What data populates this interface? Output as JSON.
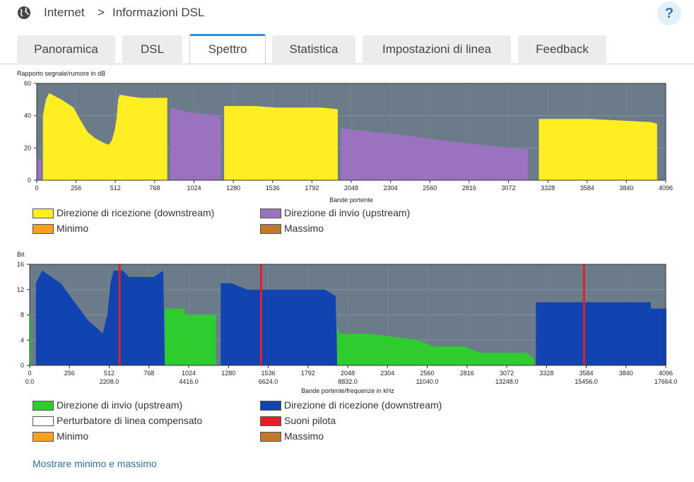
{
  "header": {
    "breadcrumb": [
      "Internet",
      "Informazioni DSL"
    ],
    "separator": ">",
    "help_label": "?"
  },
  "tabs": [
    {
      "label": "Panoramica",
      "active": false
    },
    {
      "label": "DSL",
      "active": false
    },
    {
      "label": "Spettro",
      "active": true
    },
    {
      "label": "Statistica",
      "active": false
    },
    {
      "label": "Impostazioni di linea",
      "active": false
    },
    {
      "label": "Feedback",
      "active": false
    }
  ],
  "colors": {
    "accent": "#2f8fd8",
    "plot_bg": "#6b7b89",
    "downstream_snr": "#ffee22",
    "upstream_snr": "#9b72c0",
    "upstream_bits": "#2ecc2e",
    "downstream_bits": "#1144b0",
    "pilot": "#e0202a",
    "minimum": "#f4a020",
    "maximum": "#c07a30",
    "compensated": "#ffffff"
  },
  "chart_data": [
    {
      "type": "area",
      "ylabel": "Rapporto segnale/rumore in dB",
      "xlabel": "Bande portente",
      "xlim": [
        0,
        4096
      ],
      "ylim": [
        0,
        60
      ],
      "xticks": [
        "0",
        "256",
        "512",
        "768",
        "1024",
        "1280",
        "1536",
        "1792",
        "2048",
        "2304",
        "2560",
        "2816",
        "3072",
        "3328",
        "3584",
        "3840",
        "4096"
      ],
      "yticks": [
        "0",
        "20",
        "40",
        "60"
      ],
      "grid": true,
      "series": [
        {
          "name": "Direzione di ricezione (downstream)",
          "color_key": "downstream_snr",
          "segments": [
            [
              [
                40,
                0
              ],
              [
                40,
                40
              ],
              [
                60,
                50
              ],
              [
                80,
                54
              ],
              [
                160,
                50
              ],
              [
                240,
                45
              ],
              [
                280,
                38
              ],
              [
                330,
                30
              ],
              [
                380,
                26
              ],
              [
                440,
                23
              ],
              [
                470,
                22
              ],
              [
                490,
                25
              ],
              [
                510,
                32
              ],
              [
                520,
                38
              ],
              [
                530,
                50
              ],
              [
                540,
                53
              ],
              [
                600,
                52
              ],
              [
                680,
                51
              ],
              [
                850,
                51
              ],
              [
                850,
                0
              ]
            ],
            [
              [
                1220,
                0
              ],
              [
                1220,
                46
              ],
              [
                1420,
                46
              ],
              [
                1560,
                45
              ],
              [
                1860,
                45
              ],
              [
                1960,
                44
              ],
              [
                1960,
                0
              ]
            ],
            [
              [
                3270,
                0
              ],
              [
                3270,
                38
              ],
              [
                3600,
                38
              ],
              [
                3800,
                37
              ],
              [
                4000,
                36
              ],
              [
                4040,
                35
              ],
              [
                4040,
                0
              ]
            ],
            [
              [
                2776,
                0
              ],
              [
                2776,
                18
              ],
              [
                2786,
                18
              ],
              [
                2786,
                0
              ]
            ]
          ]
        },
        {
          "name": "Direzione di invio (upstream)",
          "color_key": "upstream_snr",
          "segments": [
            [
              [
                0,
                0
              ],
              [
                0,
                13
              ],
              [
                30,
                13
              ],
              [
                30,
                0
              ]
            ],
            [
              [
                870,
                0
              ],
              [
                870,
                45
              ],
              [
                1000,
                42
              ],
              [
                1100,
                41
              ],
              [
                1200,
                40
              ],
              [
                1200,
                0
              ]
            ],
            [
              [
                1980,
                0
              ],
              [
                1980,
                32
              ],
              [
                2300,
                29
              ],
              [
                2700,
                24
              ],
              [
                3000,
                21
              ],
              [
                3200,
                19
              ],
              [
                3200,
                0
              ]
            ]
          ]
        }
      ],
      "legend": [
        {
          "label": "Direzione di ricezione  (downstream)",
          "color_key": "downstream_snr"
        },
        {
          "label": "Direzione di invio  (upstream)",
          "color_key": "upstream_snr"
        },
        {
          "label": "Minimo",
          "color_key": "minimum"
        },
        {
          "label": "Massimo",
          "color_key": "maximum"
        }
      ]
    },
    {
      "type": "area",
      "ylabel": "Bit",
      "xlabel": "Bande portente/frequenze in kHz",
      "xlim": [
        0,
        4096
      ],
      "ylim": [
        0,
        16
      ],
      "xticks": [
        "0",
        "256",
        "512",
        "768",
        "1024",
        "1280",
        "1536",
        "1792",
        "2048",
        "2304",
        "2560",
        "2816",
        "3072",
        "3328",
        "3584",
        "3840",
        "4096"
      ],
      "xticks2": [
        {
          "x": 0,
          "label": "0.0"
        },
        {
          "x": 512,
          "label": "2208.0"
        },
        {
          "x": 1024,
          "label": "4416.0"
        },
        {
          "x": 1536,
          "label": "6624.0"
        },
        {
          "x": 2048,
          "label": "8832.0"
        },
        {
          "x": 2560,
          "label": "11040.0"
        },
        {
          "x": 3072,
          "label": "13248.0"
        },
        {
          "x": 3584,
          "label": "15456.0"
        },
        {
          "x": 4096,
          "label": "17664.0"
        }
      ],
      "yticks": [
        "0",
        "4",
        "8",
        "12",
        "16"
      ],
      "grid": true,
      "series": [
        {
          "name": "Direzione di invio  (upstream)",
          "color_key": "upstream_bits",
          "segments": [
            [
              [
                0,
                0
              ],
              [
                0,
                8
              ],
              [
                10,
                8
              ],
              [
                10,
                0
              ]
            ],
            [
              [
                870,
                0
              ],
              [
                870,
                9
              ],
              [
                1000,
                9
              ],
              [
                1000,
                8
              ],
              [
                1200,
                8
              ],
              [
                1200,
                0
              ]
            ],
            [
              [
                1980,
                0
              ],
              [
                1980,
                6
              ],
              [
                2000,
                5
              ],
              [
                2200,
                5
              ],
              [
                2500,
                4
              ],
              [
                2600,
                3
              ],
              [
                2800,
                3
              ],
              [
                2900,
                2
              ],
              [
                3200,
                2
              ],
              [
                3250,
                1
              ],
              [
                3250,
                0
              ]
            ]
          ]
        },
        {
          "name": "Direzione di ricezione  (downstream)",
          "color_key": "downstream_bits",
          "segments": [
            [
              [
                40,
                0
              ],
              [
                40,
                13
              ],
              [
                80,
                15
              ],
              [
                140,
                14
              ],
              [
                200,
                13
              ],
              [
                260,
                11
              ],
              [
                320,
                9
              ],
              [
                380,
                7
              ],
              [
                430,
                6
              ],
              [
                470,
                5
              ],
              [
                500,
                8
              ],
              [
                520,
                13
              ],
              [
                540,
                15
              ],
              [
                600,
                15
              ],
              [
                640,
                14
              ],
              [
                800,
                14
              ],
              [
                860,
                15
              ],
              [
                870,
                0
              ]
            ],
            [
              [
                1230,
                0
              ],
              [
                1230,
                13
              ],
              [
                1300,
                13
              ],
              [
                1400,
                12
              ],
              [
                1460,
                12
              ],
              [
                1560,
                12
              ],
              [
                1900,
                12
              ],
              [
                1970,
                11
              ],
              [
                1980,
                0
              ]
            ],
            [
              [
                3260,
                0
              ],
              [
                3260,
                10
              ],
              [
                3300,
                10
              ],
              [
                4000,
                10
              ],
              [
                4000,
                9
              ],
              [
                4100,
                9
              ],
              [
                4100,
                0
              ]
            ]
          ]
        }
      ],
      "pilot_tones": [
        579,
        1490,
        3570
      ],
      "legend": [
        {
          "label": "Direzione di invio  (upstream)",
          "color_key": "upstream_bits"
        },
        {
          "label": "Direzione di ricezione  (downstream)",
          "color_key": "downstream_bits"
        },
        {
          "label": "Perturbatore di linea compensato",
          "color_key": "compensated"
        },
        {
          "label": "Suoni pilota",
          "color_key": "pilot"
        },
        {
          "label": "Minimo",
          "color_key": "minimum"
        },
        {
          "label": "Massimo",
          "color_key": "maximum"
        }
      ]
    }
  ],
  "footer": {
    "toggle_label": "Mostrare minimo e massimo"
  }
}
